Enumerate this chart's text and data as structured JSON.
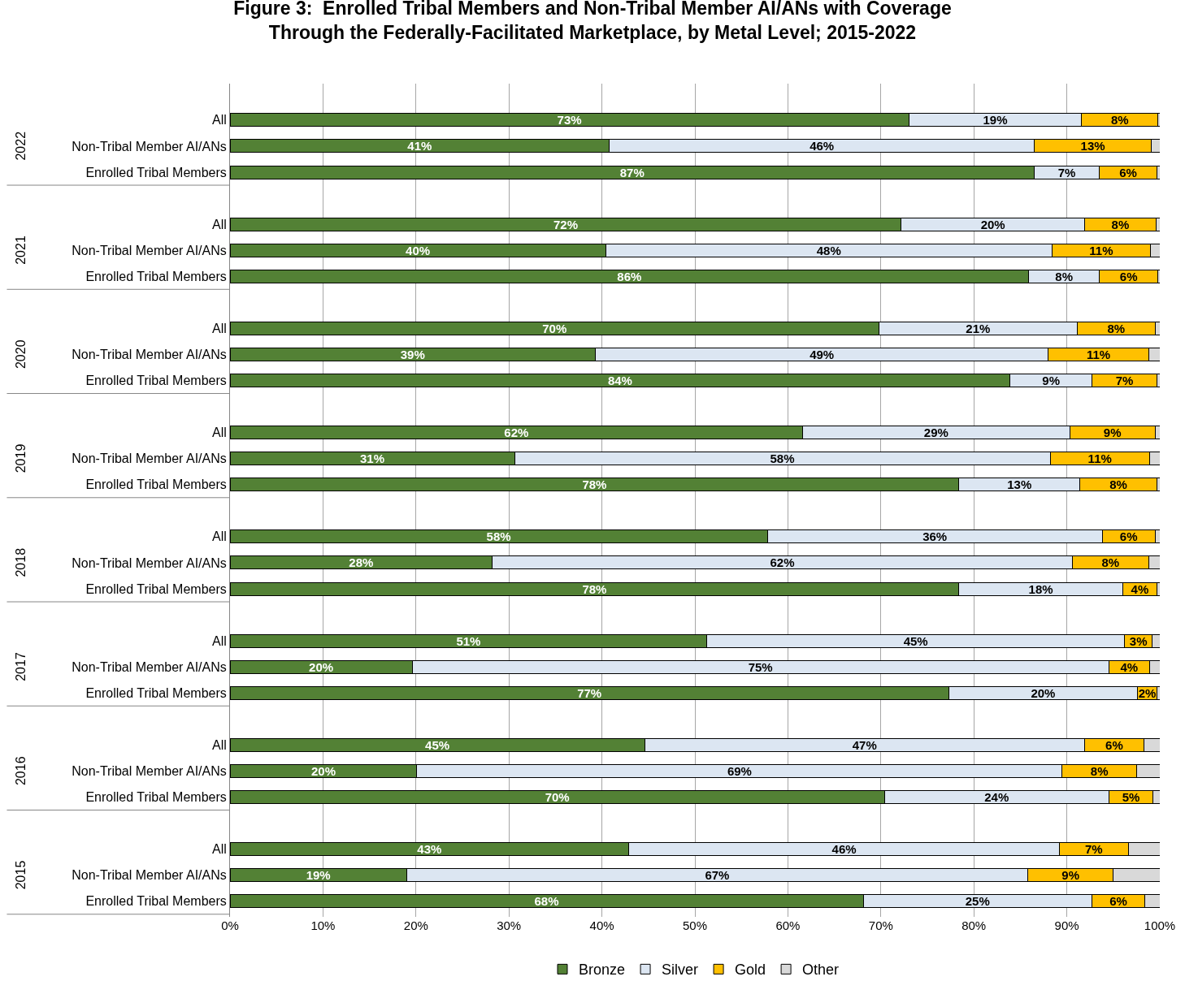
{
  "chart_data": {
    "type": "bar",
    "orientation": "horizontal",
    "stacked": true,
    "title": "Figure 3:  Enrolled Tribal Members and Non-Tribal Member AI/ANs with Coverage\nThrough the Federally-Facilitated Marketplace, by Metal Level; 2015-2022",
    "categories": [
      "All",
      "Non-Tribal Member AI/ANs",
      "Enrolled Tribal Members",
      "All",
      "Non-Tribal Member AI/ANs",
      "Enrolled Tribal Members",
      "All",
      "Non-Tribal Member AI/ANs",
      "Enrolled Tribal Members",
      "All",
      "Non-Tribal Member AI/ANs",
      "Enrolled Tribal Members",
      "All",
      "Non-Tribal Member AI/ANs",
      "Enrolled Tribal Members",
      "All",
      "Non-Tribal Member AI/ANs",
      "Enrolled Tribal Members",
      "All",
      "Non-Tribal Member AI/ANs",
      "Enrolled Tribal Members",
      "All",
      "Non-Tribal Member AI/ANs",
      "Enrolled Tribal Members"
    ],
    "annotations": [
      "2022",
      "2021",
      "2020",
      "2019",
      "2018",
      "2017",
      "2016",
      "2015"
    ],
    "series": [
      {
        "name": "Bronze",
        "color": "#538135",
        "values": [
          73.0,
          40.8,
          86.5,
          72.2,
          40.4,
          85.9,
          69.8,
          39.3,
          83.9,
          61.6,
          30.6,
          78.4,
          57.8,
          28.2,
          78.4,
          51.3,
          19.6,
          77.3,
          44.6,
          20.1,
          70.4,
          42.9,
          19.0,
          68.1
        ],
        "value_labels": [
          "73%",
          "41%",
          "87%",
          "72%",
          "40%",
          "86%",
          "70%",
          "39%",
          "84%",
          "62%",
          "31%",
          "78%",
          "58%",
          "28%",
          "78%",
          "51%",
          "20%",
          "77%",
          "45%",
          "20%",
          "70%",
          "43%",
          "19%",
          "68%"
        ]
      },
      {
        "name": "Silver",
        "color": "#dce6f2",
        "values": [
          18.6,
          45.7,
          7.0,
          19.7,
          48.0,
          7.6,
          21.3,
          48.7,
          8.8,
          28.7,
          57.6,
          13.0,
          36.0,
          62.4,
          17.6,
          44.9,
          74.9,
          20.3,
          47.3,
          69.4,
          24.1,
          46.3,
          66.8,
          24.6
        ],
        "value_labels": [
          "19%",
          "46%",
          "7%",
          "20%",
          "48%",
          "8%",
          "21%",
          "49%",
          "9%",
          "29%",
          "58%",
          "13%",
          "36%",
          "62%",
          "18%",
          "45%",
          "75%",
          "20%",
          "47%",
          "69%",
          "24%",
          "46%",
          "67%",
          "25%"
        ]
      },
      {
        "name": "Gold",
        "color": "#ffc000",
        "values": [
          8.2,
          12.6,
          6.2,
          7.7,
          10.6,
          6.3,
          8.4,
          10.8,
          7.0,
          9.2,
          10.7,
          8.3,
          5.7,
          8.2,
          3.7,
          3.0,
          4.4,
          2.1,
          6.4,
          8.0,
          4.8,
          7.4,
          9.2,
          5.7
        ],
        "value_labels": [
          "8%",
          "13%",
          "6%",
          "8%",
          "11%",
          "6%",
          "8%",
          "11%",
          "7%",
          "9%",
          "11%",
          "8%",
          "6%",
          "8%",
          "4%",
          "3%",
          "4%",
          "2%",
          "6%",
          "8%",
          "5%",
          "7%",
          "9%",
          "6%"
        ]
      },
      {
        "name": "Other",
        "color": "#d9d9d9",
        "values": [
          0.2,
          0.9,
          0.3,
          0.4,
          1.0,
          0.2,
          0.5,
          1.2,
          0.3,
          0.5,
          1.1,
          0.3,
          0.5,
          1.2,
          0.3,
          0.8,
          1.1,
          0.3,
          1.7,
          2.5,
          0.7,
          3.4,
          5.0,
          1.6
        ]
      }
    ],
    "xlim": [
      0,
      100
    ],
    "xticks": [
      {
        "value": 0,
        "label": "0%"
      },
      {
        "value": 10,
        "label": "10%"
      },
      {
        "value": 20,
        "label": "20%"
      },
      {
        "value": 30,
        "label": "30%"
      },
      {
        "value": 40,
        "label": "40%"
      },
      {
        "value": 50,
        "label": "50%"
      },
      {
        "value": 60,
        "label": "60%"
      },
      {
        "value": 70,
        "label": "70%"
      },
      {
        "value": 80,
        "label": "80%"
      },
      {
        "value": 90,
        "label": "90%"
      },
      {
        "value": 100,
        "label": "100%"
      }
    ],
    "grid": "x",
    "legend": "bottom"
  }
}
